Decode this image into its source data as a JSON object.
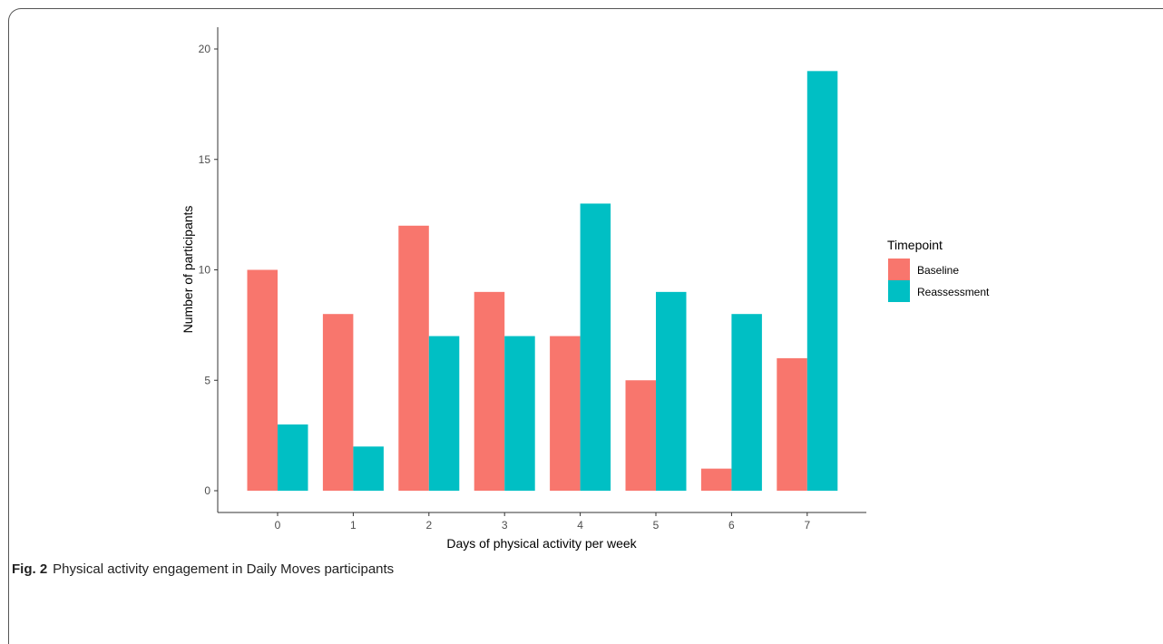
{
  "caption": {
    "label": "Fig. 2",
    "text": "Physical activity engagement in Daily Moves participants"
  },
  "chart_data": {
    "type": "bar",
    "categories": [
      "0",
      "1",
      "2",
      "3",
      "4",
      "5",
      "6",
      "7"
    ],
    "series": [
      {
        "name": "Baseline",
        "color": "#F8766D",
        "values": [
          10,
          8,
          12,
          9,
          7,
          5,
          1,
          6
        ]
      },
      {
        "name": "Reassessment",
        "color": "#00BFC4",
        "values": [
          3,
          2,
          7,
          7,
          13,
          9,
          8,
          19
        ]
      }
    ],
    "xlabel": "Days of physical activity per week",
    "ylabel": "Number of participants",
    "ylim": [
      0,
      20
    ],
    "yticks": [
      "0",
      "5",
      "10",
      "15",
      "20"
    ],
    "legend": {
      "title": "Timepoint",
      "position": "right"
    },
    "grid": false
  }
}
